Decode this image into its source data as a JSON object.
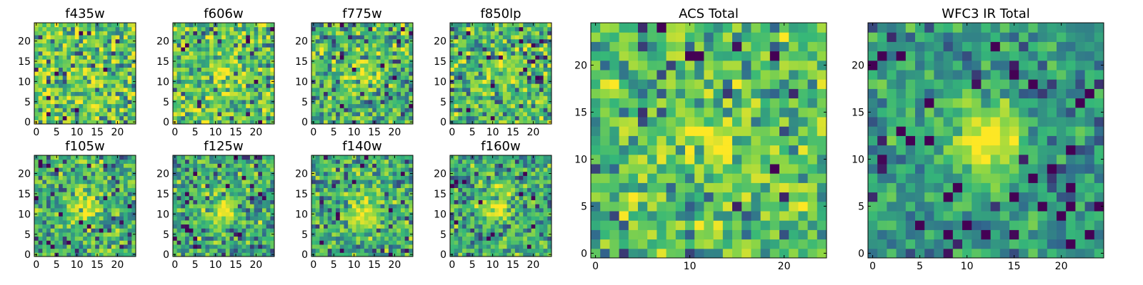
{
  "figure": {
    "background": "#ffffff"
  },
  "colormap": {
    "name": "viridis",
    "stops": [
      "#440154",
      "#31688e",
      "#35b779",
      "#90d743",
      "#fde725"
    ]
  },
  "chart_data": [
    {
      "type": "heatmap",
      "title": "f435w",
      "rows": 25,
      "cols": 25,
      "xlim": [
        0,
        24
      ],
      "ylim": [
        0,
        24
      ],
      "xticks": [
        0,
        5,
        10,
        15,
        20
      ],
      "yticks": [
        0,
        5,
        10,
        15,
        20
      ],
      "source_peak": [
        12,
        12
      ],
      "source_strength": 0.05,
      "noise": 0.85,
      "base": 0.64
    },
    {
      "type": "heatmap",
      "title": "f606w",
      "rows": 25,
      "cols": 25,
      "xlim": [
        0,
        24
      ],
      "ylim": [
        0,
        24
      ],
      "xticks": [
        0,
        5,
        10,
        15,
        20
      ],
      "yticks": [
        0,
        5,
        10,
        15,
        20
      ],
      "source_peak": [
        12,
        12
      ],
      "source_strength": 0.22,
      "noise": 0.8,
      "base": 0.6
    },
    {
      "type": "heatmap",
      "title": "f775w",
      "rows": 25,
      "cols": 25,
      "xlim": [
        0,
        24
      ],
      "ylim": [
        0,
        24
      ],
      "xticks": [
        0,
        5,
        10,
        15,
        20
      ],
      "yticks": [
        0,
        5,
        10,
        15,
        20
      ],
      "source_peak": [
        12,
        12
      ],
      "source_strength": 0.3,
      "noise": 0.8,
      "base": 0.55
    },
    {
      "type": "heatmap",
      "title": "f850lp",
      "rows": 25,
      "cols": 25,
      "xlim": [
        0,
        24
      ],
      "ylim": [
        0,
        24
      ],
      "xticks": [
        0,
        5,
        10,
        15,
        20
      ],
      "yticks": [
        0,
        5,
        10,
        15,
        20
      ],
      "source_peak": [
        12,
        12
      ],
      "source_strength": 0.3,
      "noise": 0.8,
      "base": 0.56
    },
    {
      "type": "heatmap",
      "title": "ACS Total",
      "rows": 25,
      "cols": 25,
      "xlim": [
        0,
        24
      ],
      "ylim": [
        0,
        24
      ],
      "xticks": [
        0,
        10,
        20
      ],
      "yticks": [
        0,
        5,
        10,
        15,
        20
      ],
      "source_peak": [
        12,
        12
      ],
      "source_strength": 0.35,
      "noise": 0.7,
      "base": 0.58
    },
    {
      "type": "heatmap",
      "title": "f105w",
      "rows": 25,
      "cols": 25,
      "xlim": [
        0,
        24
      ],
      "ylim": [
        0,
        24
      ],
      "xticks": [
        0,
        5,
        10,
        15,
        20
      ],
      "yticks": [
        0,
        5,
        10,
        15,
        20
      ],
      "source_peak": [
        12,
        12
      ],
      "source_strength": 0.42,
      "noise": 0.7,
      "base": 0.5
    },
    {
      "type": "heatmap",
      "title": "f125w",
      "rows": 25,
      "cols": 25,
      "xlim": [
        0,
        24
      ],
      "ylim": [
        0,
        24
      ],
      "xticks": [
        0,
        5,
        10,
        15,
        20
      ],
      "yticks": [
        0,
        5,
        10,
        15,
        20
      ],
      "source_peak": [
        12,
        11
      ],
      "source_strength": 0.45,
      "noise": 0.7,
      "base": 0.48
    },
    {
      "type": "heatmap",
      "title": "f140w",
      "rows": 25,
      "cols": 25,
      "xlim": [
        0,
        24
      ],
      "ylim": [
        0,
        24
      ],
      "xticks": [
        0,
        5,
        10,
        15,
        20
      ],
      "yticks": [
        0,
        5,
        10,
        15,
        20
      ],
      "source_peak": [
        12,
        10
      ],
      "source_strength": 0.42,
      "noise": 0.7,
      "base": 0.5
    },
    {
      "type": "heatmap",
      "title": "f160w",
      "rows": 25,
      "cols": 25,
      "xlim": [
        0,
        24
      ],
      "ylim": [
        0,
        24
      ],
      "xticks": [
        0,
        5,
        10,
        15,
        20
      ],
      "yticks": [
        0,
        5,
        10,
        15,
        20
      ],
      "source_peak": [
        11,
        12
      ],
      "source_strength": 0.45,
      "noise": 0.65,
      "base": 0.5
    },
    {
      "type": "heatmap",
      "title": "WFC3 IR Total",
      "rows": 25,
      "cols": 25,
      "xlim": [
        0,
        24
      ],
      "ylim": [
        0,
        24
      ],
      "xticks": [
        0,
        5,
        10,
        15,
        20
      ],
      "yticks": [
        0,
        5,
        10,
        15,
        20
      ],
      "source_peak": [
        12,
        12
      ],
      "source_strength": 0.6,
      "noise": 0.45,
      "base": 0.4
    }
  ]
}
